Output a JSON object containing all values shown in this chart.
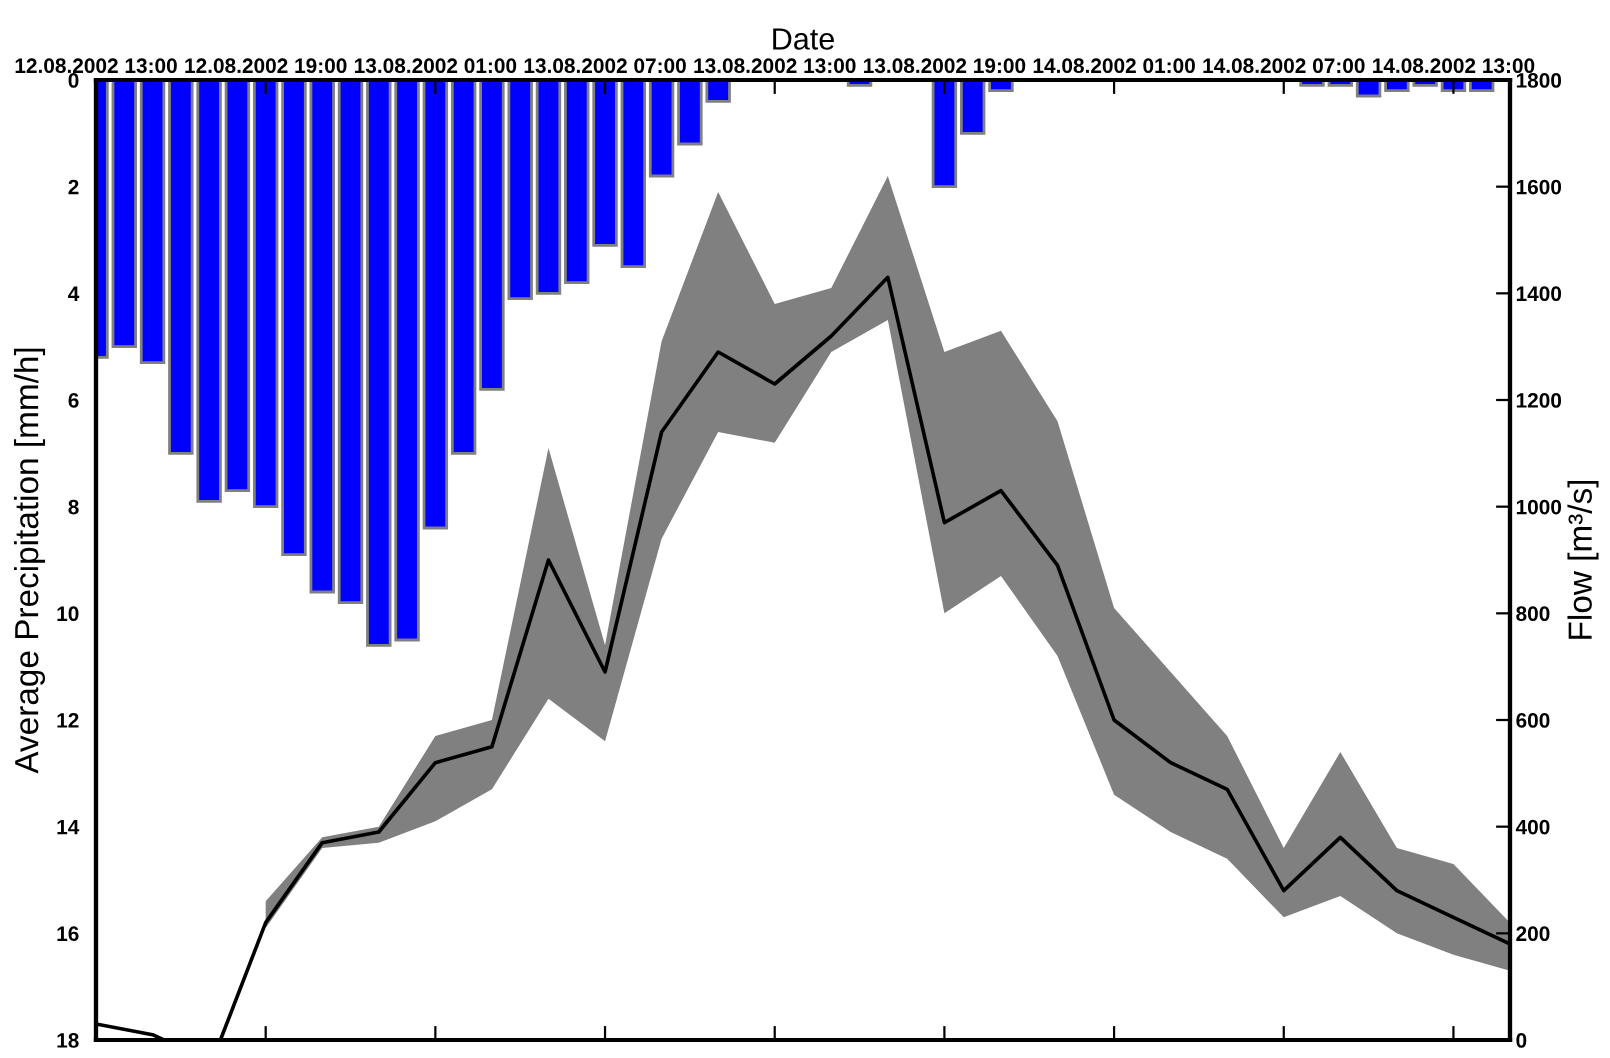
{
  "chart_data": {
    "type": "bar",
    "xlabel": "Date",
    "ylabel": "Average Precipitation [mm/h]",
    "y2label": "Flow [m³/s]",
    "xlim": [
      "2002-08-12T13:00",
      "2002-08-14T15:00"
    ],
    "xticks": [
      {
        "value": "2002-08-12T13:00",
        "label": "12.08.2002 13:00"
      },
      {
        "value": "2002-08-12T19:00",
        "label": "12.08.2002 19:00"
      },
      {
        "value": "2002-08-13T01:00",
        "label": "13.08.2002 01:00"
      },
      {
        "value": "2002-08-13T07:00",
        "label": "13.08.2002 07:00"
      },
      {
        "value": "2002-08-13T13:00",
        "label": "13.08.2002 13:00"
      },
      {
        "value": "2002-08-13T19:00",
        "label": "13.08.2002 19:00"
      },
      {
        "value": "2002-08-14T01:00",
        "label": "14.08.2002 01:00"
      },
      {
        "value": "2002-08-14T07:00",
        "label": "14.08.2002 07:00"
      },
      {
        "value": "2002-08-14T13:00",
        "label": "14.08.2002 13:00"
      }
    ],
    "ylim": [
      18,
      0
    ],
    "yticks": [
      0,
      2,
      4,
      6,
      8,
      10,
      12,
      14,
      16,
      18
    ],
    "y2lim": [
      0,
      1800
    ],
    "y2ticks": [
      0,
      200,
      400,
      600,
      800,
      1000,
      1200,
      1400,
      1600,
      1800
    ],
    "grid": false,
    "legend": false,
    "series": [
      {
        "color": "#0000ff",
        "x": [
          "2002-08-12T13:00",
          "2002-08-12T14:00",
          "2002-08-12T15:00",
          "2002-08-12T16:00",
          "2002-08-12T17:00",
          "2002-08-12T18:00",
          "2002-08-12T19:00",
          "2002-08-12T20:00",
          "2002-08-12T21:00",
          "2002-08-12T22:00",
          "2002-08-12T23:00",
          "2002-08-13T00:00",
          "2002-08-13T01:00",
          "2002-08-13T02:00",
          "2002-08-13T03:00",
          "2002-08-13T04:00",
          "2002-08-13T05:00",
          "2002-08-13T06:00",
          "2002-08-13T07:00",
          "2002-08-13T08:00",
          "2002-08-13T09:00",
          "2002-08-13T10:00",
          "2002-08-13T11:00",
          "2002-08-13T12:00",
          "2002-08-13T13:00",
          "2002-08-13T14:00",
          "2002-08-13T15:00",
          "2002-08-13T16:00",
          "2002-08-13T17:00",
          "2002-08-13T18:00",
          "2002-08-13T19:00",
          "2002-08-13T20:00",
          "2002-08-13T21:00",
          "2002-08-13T22:00",
          "2002-08-13T23:00",
          "2002-08-14T00:00",
          "2002-08-14T01:00",
          "2002-08-14T02:00",
          "2002-08-14T03:00",
          "2002-08-14T04:00",
          "2002-08-14T05:00",
          "2002-08-14T06:00",
          "2002-08-14T07:00",
          "2002-08-14T08:00",
          "2002-08-14T09:00",
          "2002-08-14T10:00",
          "2002-08-14T11:00",
          "2002-08-14T12:00",
          "2002-08-14T13:00",
          "2002-08-14T14:00"
        ],
        "values": [
          5.2,
          5.0,
          5.3,
          7.0,
          7.9,
          7.7,
          8.0,
          8.9,
          9.6,
          9.8,
          10.6,
          10.5,
          8.4,
          7.0,
          5.8,
          4.1,
          4.0,
          3.8,
          3.1,
          3.5,
          1.8,
          1.2,
          0.4,
          0,
          0,
          0,
          0,
          0.1,
          0,
          0,
          2.0,
          1.0,
          0.2,
          0,
          0,
          0,
          0,
          0,
          0,
          0,
          0,
          0,
          0,
          0.1,
          0.1,
          0.3,
          0.2,
          0.1,
          0.2,
          0.2
        ]
      },
      {
        "type": "line",
        "axis": "y2",
        "color": "#000000",
        "x": [
          "2002-08-12T13:00",
          "2002-08-12T15:00",
          "2002-08-12T15:24",
          "2002-08-12T17:24",
          "2002-08-12T19:00",
          "2002-08-12T21:00",
          "2002-08-12T23:00",
          "2002-08-13T01:00",
          "2002-08-13T03:00",
          "2002-08-13T05:00",
          "2002-08-13T07:00",
          "2002-08-13T09:00",
          "2002-08-13T11:00",
          "2002-08-13T13:00",
          "2002-08-13T15:00",
          "2002-08-13T17:00",
          "2002-08-13T19:00",
          "2002-08-13T21:00",
          "2002-08-13T23:00",
          "2002-08-14T01:00",
          "2002-08-14T03:00",
          "2002-08-14T05:00",
          "2002-08-14T07:00",
          "2002-08-14T09:00",
          "2002-08-14T11:00",
          "2002-08-14T13:00",
          "2002-08-14T15:00"
        ],
        "values": [
          30,
          10,
          0,
          0,
          220,
          370,
          390,
          520,
          550,
          900,
          690,
          1140,
          1290,
          1230,
          1320,
          1430,
          970,
          1030,
          890,
          600,
          520,
          470,
          280,
          380,
          280,
          230,
          180
        ],
        "lower": [
          null,
          null,
          null,
          null,
          210,
          360,
          370,
          410,
          470,
          640,
          560,
          940,
          1140,
          1120,
          1290,
          1350,
          800,
          870,
          720,
          460,
          390,
          340,
          230,
          270,
          200,
          160,
          130
        ],
        "upper": [
          null,
          null,
          null,
          null,
          260,
          380,
          400,
          570,
          600,
          1110,
          740,
          1310,
          1590,
          1380,
          1410,
          1620,
          1290,
          1330,
          1160,
          810,
          690,
          570,
          360,
          540,
          360,
          330,
          220
        ]
      }
    ]
  }
}
